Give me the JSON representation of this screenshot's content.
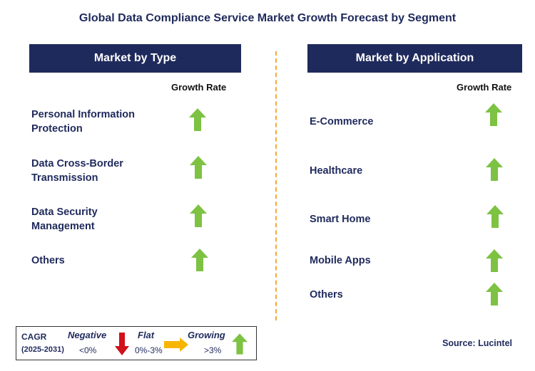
{
  "title": "Global Data Compliance Service Market Growth Forecast by Segment",
  "left_panel": {
    "header": "Market by Type",
    "column_label": "Growth Rate",
    "items": [
      {
        "line1": "Personal Information",
        "line2": "Protection",
        "trend": "growing"
      },
      {
        "line1": "Data Cross-Border",
        "line2": "Transmission",
        "trend": "growing"
      },
      {
        "line1": "Data Security",
        "line2": "Management",
        "trend": "growing"
      },
      {
        "line1": "Others",
        "line2": "",
        "trend": "growing"
      }
    ]
  },
  "right_panel": {
    "header": "Market by Application",
    "column_label": "Growth Rate",
    "items": [
      {
        "label": "E-Commerce",
        "trend": "growing"
      },
      {
        "label": "Healthcare",
        "trend": "growing"
      },
      {
        "label": "Smart Home",
        "trend": "growing"
      },
      {
        "label": "Mobile Apps",
        "trend": "growing"
      },
      {
        "label": "Others",
        "trend": "growing"
      }
    ]
  },
  "legend": {
    "cagr_label": "CAGR",
    "period": "(2025-2031)",
    "negative_label": "Negative",
    "negative_range": "<0%",
    "flat_label": "Flat",
    "flat_range": "0%-3%",
    "growing_label": "Growing",
    "growing_range": ">3%"
  },
  "source": "Source: Lucintel",
  "colors": {
    "navy": "#1f2a5c",
    "green_arrow": "#7dc242",
    "red_arrow": "#d0121b",
    "orange_arrow": "#f7b500",
    "divider": "#f2a93b"
  }
}
